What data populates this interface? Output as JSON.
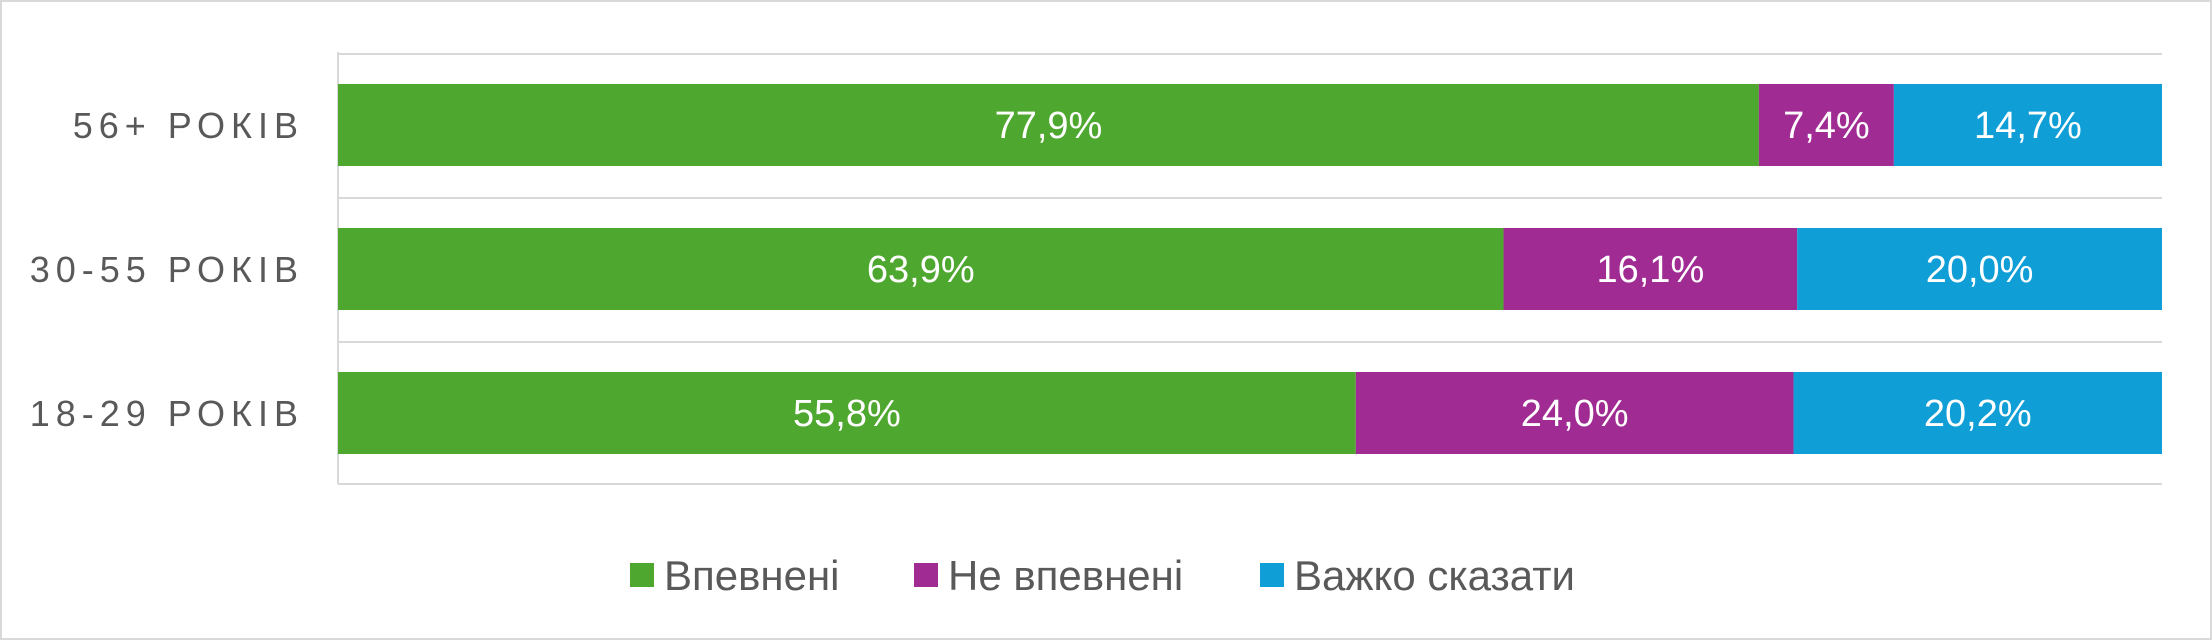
{
  "chart_data": {
    "type": "bar",
    "orientation": "horizontal",
    "stacked": true,
    "categories": [
      "56+ РОКІВ",
      "30-55 РОКІВ",
      "18-29 РОКІВ"
    ],
    "series": [
      {
        "name": "Впевнені",
        "color": "#4ea72e",
        "values": [
          77.9,
          63.9,
          55.8
        ],
        "labels": [
          "77,9%",
          "63,9%",
          "55,8%"
        ]
      },
      {
        "name": "Не впевнені",
        "color": "#a02b93",
        "values": [
          7.4,
          16.1,
          24.0
        ],
        "labels": [
          "7,4%",
          "16,1%",
          "24,0%"
        ]
      },
      {
        "name": "Важко сказати",
        "color": "#0f9ed5",
        "values": [
          14.7,
          20.0,
          20.2
        ],
        "labels": [
          "14,7%",
          "20,0%",
          "20,2%"
        ]
      }
    ],
    "xlim": [
      0,
      100
    ],
    "grid": true,
    "legend_position": "bottom",
    "title": "",
    "xlabel": "",
    "ylabel": ""
  }
}
